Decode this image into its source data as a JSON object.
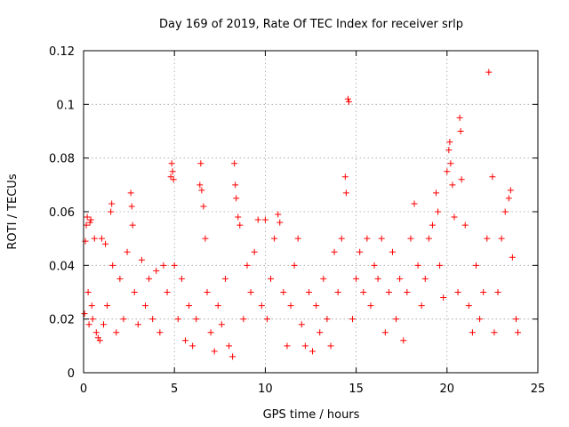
{
  "chart_data": {
    "type": "scatter",
    "title": "Day 169 of 2019, Rate Of TEC Index for receiver srlp",
    "xlabel": "GPS time / hours",
    "ylabel": "ROTI / TECUs",
    "xlim": [
      0,
      25
    ],
    "ylim": [
      0,
      0.12
    ],
    "xticks": [
      0,
      5,
      10,
      15,
      20,
      25
    ],
    "xtick_labels": [
      "0",
      "5",
      "10",
      "15",
      "20",
      "25"
    ],
    "yticks": [
      0,
      0.02,
      0.04,
      0.06,
      0.08,
      0.1,
      0.12
    ],
    "ytick_labels": [
      "0",
      "0.02",
      "0.04",
      "0.06",
      "0.08",
      "0.1",
      "0.12"
    ],
    "grid": true,
    "marker": "+",
    "color": "#ff0000",
    "series": [
      {
        "name": "ROTI",
        "points": [
          [
            0.05,
            0.022
          ],
          [
            0.1,
            0.049
          ],
          [
            0.15,
            0.055
          ],
          [
            0.2,
            0.058
          ],
          [
            0.25,
            0.03
          ],
          [
            0.3,
            0.018
          ],
          [
            0.35,
            0.056
          ],
          [
            0.4,
            0.057
          ],
          [
            0.45,
            0.025
          ],
          [
            0.5,
            0.02
          ],
          [
            0.6,
            0.05
          ],
          [
            0.7,
            0.015
          ],
          [
            0.8,
            0.013
          ],
          [
            0.9,
            0.012
          ],
          [
            1.0,
            0.05
          ],
          [
            1.1,
            0.018
          ],
          [
            1.2,
            0.048
          ],
          [
            1.3,
            0.025
          ],
          [
            1.5,
            0.06
          ],
          [
            1.55,
            0.063
          ],
          [
            1.6,
            0.04
          ],
          [
            1.8,
            0.015
          ],
          [
            2.0,
            0.035
          ],
          [
            2.2,
            0.02
          ],
          [
            2.4,
            0.045
          ],
          [
            2.6,
            0.067
          ],
          [
            2.65,
            0.062
          ],
          [
            2.7,
            0.055
          ],
          [
            2.8,
            0.03
          ],
          [
            3.0,
            0.018
          ],
          [
            3.2,
            0.042
          ],
          [
            3.4,
            0.025
          ],
          [
            3.6,
            0.035
          ],
          [
            3.8,
            0.02
          ],
          [
            4.0,
            0.038
          ],
          [
            4.2,
            0.015
          ],
          [
            4.4,
            0.04
          ],
          [
            4.6,
            0.03
          ],
          [
            4.8,
            0.073
          ],
          [
            4.85,
            0.078
          ],
          [
            4.9,
            0.075
          ],
          [
            4.95,
            0.072
          ],
          [
            5.0,
            0.04
          ],
          [
            5.2,
            0.02
          ],
          [
            5.4,
            0.035
          ],
          [
            5.6,
            0.012
          ],
          [
            5.8,
            0.025
          ],
          [
            6.0,
            0.01
          ],
          [
            6.2,
            0.02
          ],
          [
            6.4,
            0.07
          ],
          [
            6.45,
            0.078
          ],
          [
            6.5,
            0.068
          ],
          [
            6.6,
            0.062
          ],
          [
            6.7,
            0.05
          ],
          [
            6.8,
            0.03
          ],
          [
            7.0,
            0.015
          ],
          [
            7.2,
            0.008
          ],
          [
            7.4,
            0.025
          ],
          [
            7.6,
            0.018
          ],
          [
            7.8,
            0.035
          ],
          [
            8.0,
            0.01
          ],
          [
            8.2,
            0.006
          ],
          [
            8.3,
            0.078
          ],
          [
            8.35,
            0.07
          ],
          [
            8.4,
            0.065
          ],
          [
            8.5,
            0.058
          ],
          [
            8.6,
            0.055
          ],
          [
            8.8,
            0.02
          ],
          [
            9.0,
            0.04
          ],
          [
            9.2,
            0.03
          ],
          [
            9.4,
            0.045
          ],
          [
            9.6,
            0.057
          ],
          [
            9.8,
            0.025
          ],
          [
            10.0,
            0.057
          ],
          [
            10.1,
            0.02
          ],
          [
            10.3,
            0.035
          ],
          [
            10.5,
            0.05
          ],
          [
            10.7,
            0.059
          ],
          [
            10.8,
            0.056
          ],
          [
            11.0,
            0.03
          ],
          [
            11.2,
            0.01
          ],
          [
            11.4,
            0.025
          ],
          [
            11.6,
            0.04
          ],
          [
            11.8,
            0.05
          ],
          [
            12.0,
            0.018
          ],
          [
            12.2,
            0.01
          ],
          [
            12.4,
            0.03
          ],
          [
            12.6,
            0.008
          ],
          [
            12.8,
            0.025
          ],
          [
            13.0,
            0.015
          ],
          [
            13.2,
            0.035
          ],
          [
            13.4,
            0.02
          ],
          [
            13.6,
            0.01
          ],
          [
            13.8,
            0.045
          ],
          [
            14.0,
            0.03
          ],
          [
            14.2,
            0.05
          ],
          [
            14.4,
            0.073
          ],
          [
            14.45,
            0.067
          ],
          [
            14.55,
            0.102
          ],
          [
            14.6,
            0.101
          ],
          [
            14.8,
            0.02
          ],
          [
            15.0,
            0.035
          ],
          [
            15.2,
            0.045
          ],
          [
            15.4,
            0.03
          ],
          [
            15.6,
            0.05
          ],
          [
            15.8,
            0.025
          ],
          [
            16.0,
            0.04
          ],
          [
            16.2,
            0.035
          ],
          [
            16.4,
            0.05
          ],
          [
            16.6,
            0.015
          ],
          [
            16.8,
            0.03
          ],
          [
            17.0,
            0.045
          ],
          [
            17.2,
            0.02
          ],
          [
            17.4,
            0.035
          ],
          [
            17.6,
            0.012
          ],
          [
            17.8,
            0.03
          ],
          [
            18.0,
            0.05
          ],
          [
            18.2,
            0.063
          ],
          [
            18.4,
            0.04
          ],
          [
            18.6,
            0.025
          ],
          [
            18.8,
            0.035
          ],
          [
            19.0,
            0.05
          ],
          [
            19.2,
            0.055
          ],
          [
            19.4,
            0.067
          ],
          [
            19.5,
            0.06
          ],
          [
            19.6,
            0.04
          ],
          [
            19.8,
            0.028
          ],
          [
            20.0,
            0.075
          ],
          [
            20.1,
            0.083
          ],
          [
            20.15,
            0.086
          ],
          [
            20.2,
            0.078
          ],
          [
            20.3,
            0.07
          ],
          [
            20.4,
            0.058
          ],
          [
            20.6,
            0.03
          ],
          [
            20.7,
            0.095
          ],
          [
            20.75,
            0.09
          ],
          [
            20.8,
            0.072
          ],
          [
            21.0,
            0.055
          ],
          [
            21.2,
            0.025
          ],
          [
            21.4,
            0.015
          ],
          [
            21.6,
            0.04
          ],
          [
            21.8,
            0.02
          ],
          [
            22.0,
            0.03
          ],
          [
            22.2,
            0.05
          ],
          [
            22.3,
            0.112
          ],
          [
            22.5,
            0.073
          ],
          [
            22.6,
            0.015
          ],
          [
            22.8,
            0.03
          ],
          [
            23.0,
            0.05
          ],
          [
            23.2,
            0.06
          ],
          [
            23.4,
            0.065
          ],
          [
            23.5,
            0.068
          ],
          [
            23.6,
            0.043
          ],
          [
            23.8,
            0.02
          ],
          [
            23.9,
            0.015
          ]
        ]
      }
    ]
  }
}
